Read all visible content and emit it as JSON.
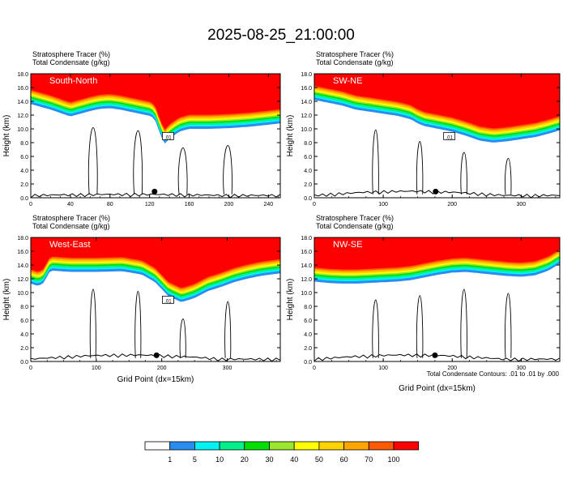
{
  "title": "2025-08-25_21:00:00",
  "footer_note": "Total Condensate Contours: .01 to .01 by .000",
  "colors": {
    "tracer_levels": [
      "#ffffff",
      "#2a8cf0",
      "#00f2f2",
      "#00f08c",
      "#00e000",
      "#9ae62e",
      "#ffff00",
      "#ffd200",
      "#ffa500",
      "#ff5a00",
      "#ff0000"
    ],
    "contour": "#000000",
    "panel_label": "#ffffff"
  },
  "colorbar": {
    "labels": [
      "1",
      "5",
      "10",
      "20",
      "30",
      "40",
      "50",
      "60",
      "70",
      "100"
    ]
  },
  "chart_data": [
    {
      "type": "heatmap",
      "panel": "South-North",
      "subtitle_line1": "Stratosphere Tracer   (%)",
      "subtitle_line2": "Total Condensate   (g/kg)",
      "ylabel": "Height (km)",
      "xlabel": "",
      "xlim": [
        0,
        252
      ],
      "ylim": [
        0,
        18
      ],
      "xticks": [
        0,
        40,
        80,
        120,
        160,
        200,
        240
      ],
      "yticks": [
        "0.0",
        "2.0",
        "4.0",
        "6.0",
        "8.0",
        "10.0",
        "12.0",
        "14.0",
        "16.0",
        "18.0"
      ],
      "contour_label": ".01",
      "marker_x": 125,
      "tracer_base_km": [
        [
          0,
          13.6
        ],
        [
          10,
          13.2
        ],
        [
          20,
          12.8
        ],
        [
          30,
          12.3
        ],
        [
          40,
          11.8
        ],
        [
          50,
          12.2
        ],
        [
          60,
          12.6
        ],
        [
          70,
          12.9
        ],
        [
          80,
          13.0
        ],
        [
          90,
          12.8
        ],
        [
          100,
          12.5
        ],
        [
          110,
          12.2
        ],
        [
          120,
          11.9
        ],
        [
          125,
          11.5
        ],
        [
          130,
          9.5
        ],
        [
          135,
          7.8
        ],
        [
          140,
          8.6
        ],
        [
          150,
          9.6
        ],
        [
          160,
          10.0
        ],
        [
          180,
          10.0
        ],
        [
          200,
          10.1
        ],
        [
          220,
          10.3
        ],
        [
          240,
          10.6
        ],
        [
          252,
          10.8
        ]
      ]
    },
    {
      "type": "heatmap",
      "panel": "SW-NE",
      "subtitle_line1": "Stratosphere Tracer   (%)",
      "subtitle_line2": "Total Condensate   (g/kg)",
      "ylabel": "Height (km)",
      "xlabel": "",
      "xlim": [
        0,
        356
      ],
      "ylim": [
        0,
        18
      ],
      "xticks": [
        0,
        100,
        200,
        300
      ],
      "yticks": [
        "0.0",
        "2.0",
        "4.0",
        "6.0",
        "8.0",
        "10.0",
        "12.0",
        "14.0",
        "16.0",
        "18.0"
      ],
      "contour_label": ".01",
      "marker_x": 176,
      "tracer_base_km": [
        [
          0,
          14.2
        ],
        [
          20,
          13.8
        ],
        [
          40,
          13.4
        ],
        [
          60,
          12.8
        ],
        [
          80,
          12.5
        ],
        [
          100,
          12.2
        ],
        [
          120,
          11.9
        ],
        [
          140,
          11.4
        ],
        [
          150,
          10.8
        ],
        [
          160,
          10.4
        ],
        [
          180,
          10.0
        ],
        [
          200,
          9.6
        ],
        [
          220,
          9.0
        ],
        [
          240,
          8.3
        ],
        [
          260,
          8.0
        ],
        [
          280,
          8.2
        ],
        [
          300,
          8.5
        ],
        [
          320,
          8.8
        ],
        [
          340,
          9.3
        ],
        [
          356,
          9.8
        ]
      ]
    },
    {
      "type": "heatmap",
      "panel": "West-East",
      "subtitle_line1": "Stratosphere Tracer   (%)",
      "subtitle_line2": "Total Condensate   (g/kg)",
      "ylabel": "Height (km)",
      "xlabel": "Grid Point (dx=15km)",
      "xlim": [
        0,
        381
      ],
      "ylim": [
        0,
        18
      ],
      "xticks": [
        0,
        100,
        200,
        300
      ],
      "yticks": [
        "0.0",
        "2.0",
        "4.0",
        "6.0",
        "8.0",
        "10.0",
        "12.0",
        "14.0",
        "16.0",
        "18.0"
      ],
      "contour_label": ".01",
      "marker_x": 192,
      "tracer_base_km": [
        [
          0,
          11.3
        ],
        [
          10,
          11.0
        ],
        [
          18,
          11.2
        ],
        [
          30,
          13.2
        ],
        [
          60,
          13.0
        ],
        [
          100,
          13.0
        ],
        [
          140,
          13.1
        ],
        [
          170,
          12.6
        ],
        [
          190,
          11.5
        ],
        [
          210,
          9.5
        ],
        [
          230,
          8.6
        ],
        [
          250,
          9.2
        ],
        [
          270,
          10.2
        ],
        [
          290,
          10.8
        ],
        [
          310,
          11.5
        ],
        [
          330,
          12.0
        ],
        [
          350,
          12.4
        ],
        [
          381,
          12.8
        ]
      ]
    },
    {
      "type": "heatmap",
      "panel": "NW-SE",
      "subtitle_line1": "Stratosphere Tracer   (%)",
      "subtitle_line2": "Total Condensate   (g/kg)",
      "ylabel": "Height (km)",
      "xlabel": "Grid Point (dx=15km)",
      "xlim": [
        0,
        356
      ],
      "ylim": [
        0,
        18
      ],
      "xticks": [
        0,
        100,
        200,
        300
      ],
      "yticks": [
        "0.0",
        "2.0",
        "4.0",
        "6.0",
        "8.0",
        "10.0",
        "12.0",
        "14.0",
        "16.0",
        "18.0"
      ],
      "contour_label": "",
      "marker_x": 175,
      "tracer_base_km": [
        [
          0,
          11.6
        ],
        [
          20,
          11.4
        ],
        [
          40,
          11.3
        ],
        [
          60,
          11.3
        ],
        [
          80,
          11.4
        ],
        [
          100,
          11.5
        ],
        [
          120,
          11.6
        ],
        [
          140,
          11.8
        ],
        [
          160,
          12.2
        ],
        [
          180,
          12.6
        ],
        [
          200,
          12.9
        ],
        [
          220,
          13.0
        ],
        [
          240,
          12.8
        ],
        [
          260,
          12.6
        ],
        [
          280,
          12.4
        ],
        [
          300,
          12.3
        ],
        [
          320,
          12.5
        ],
        [
          340,
          13.2
        ],
        [
          356,
          14.2
        ]
      ]
    }
  ]
}
